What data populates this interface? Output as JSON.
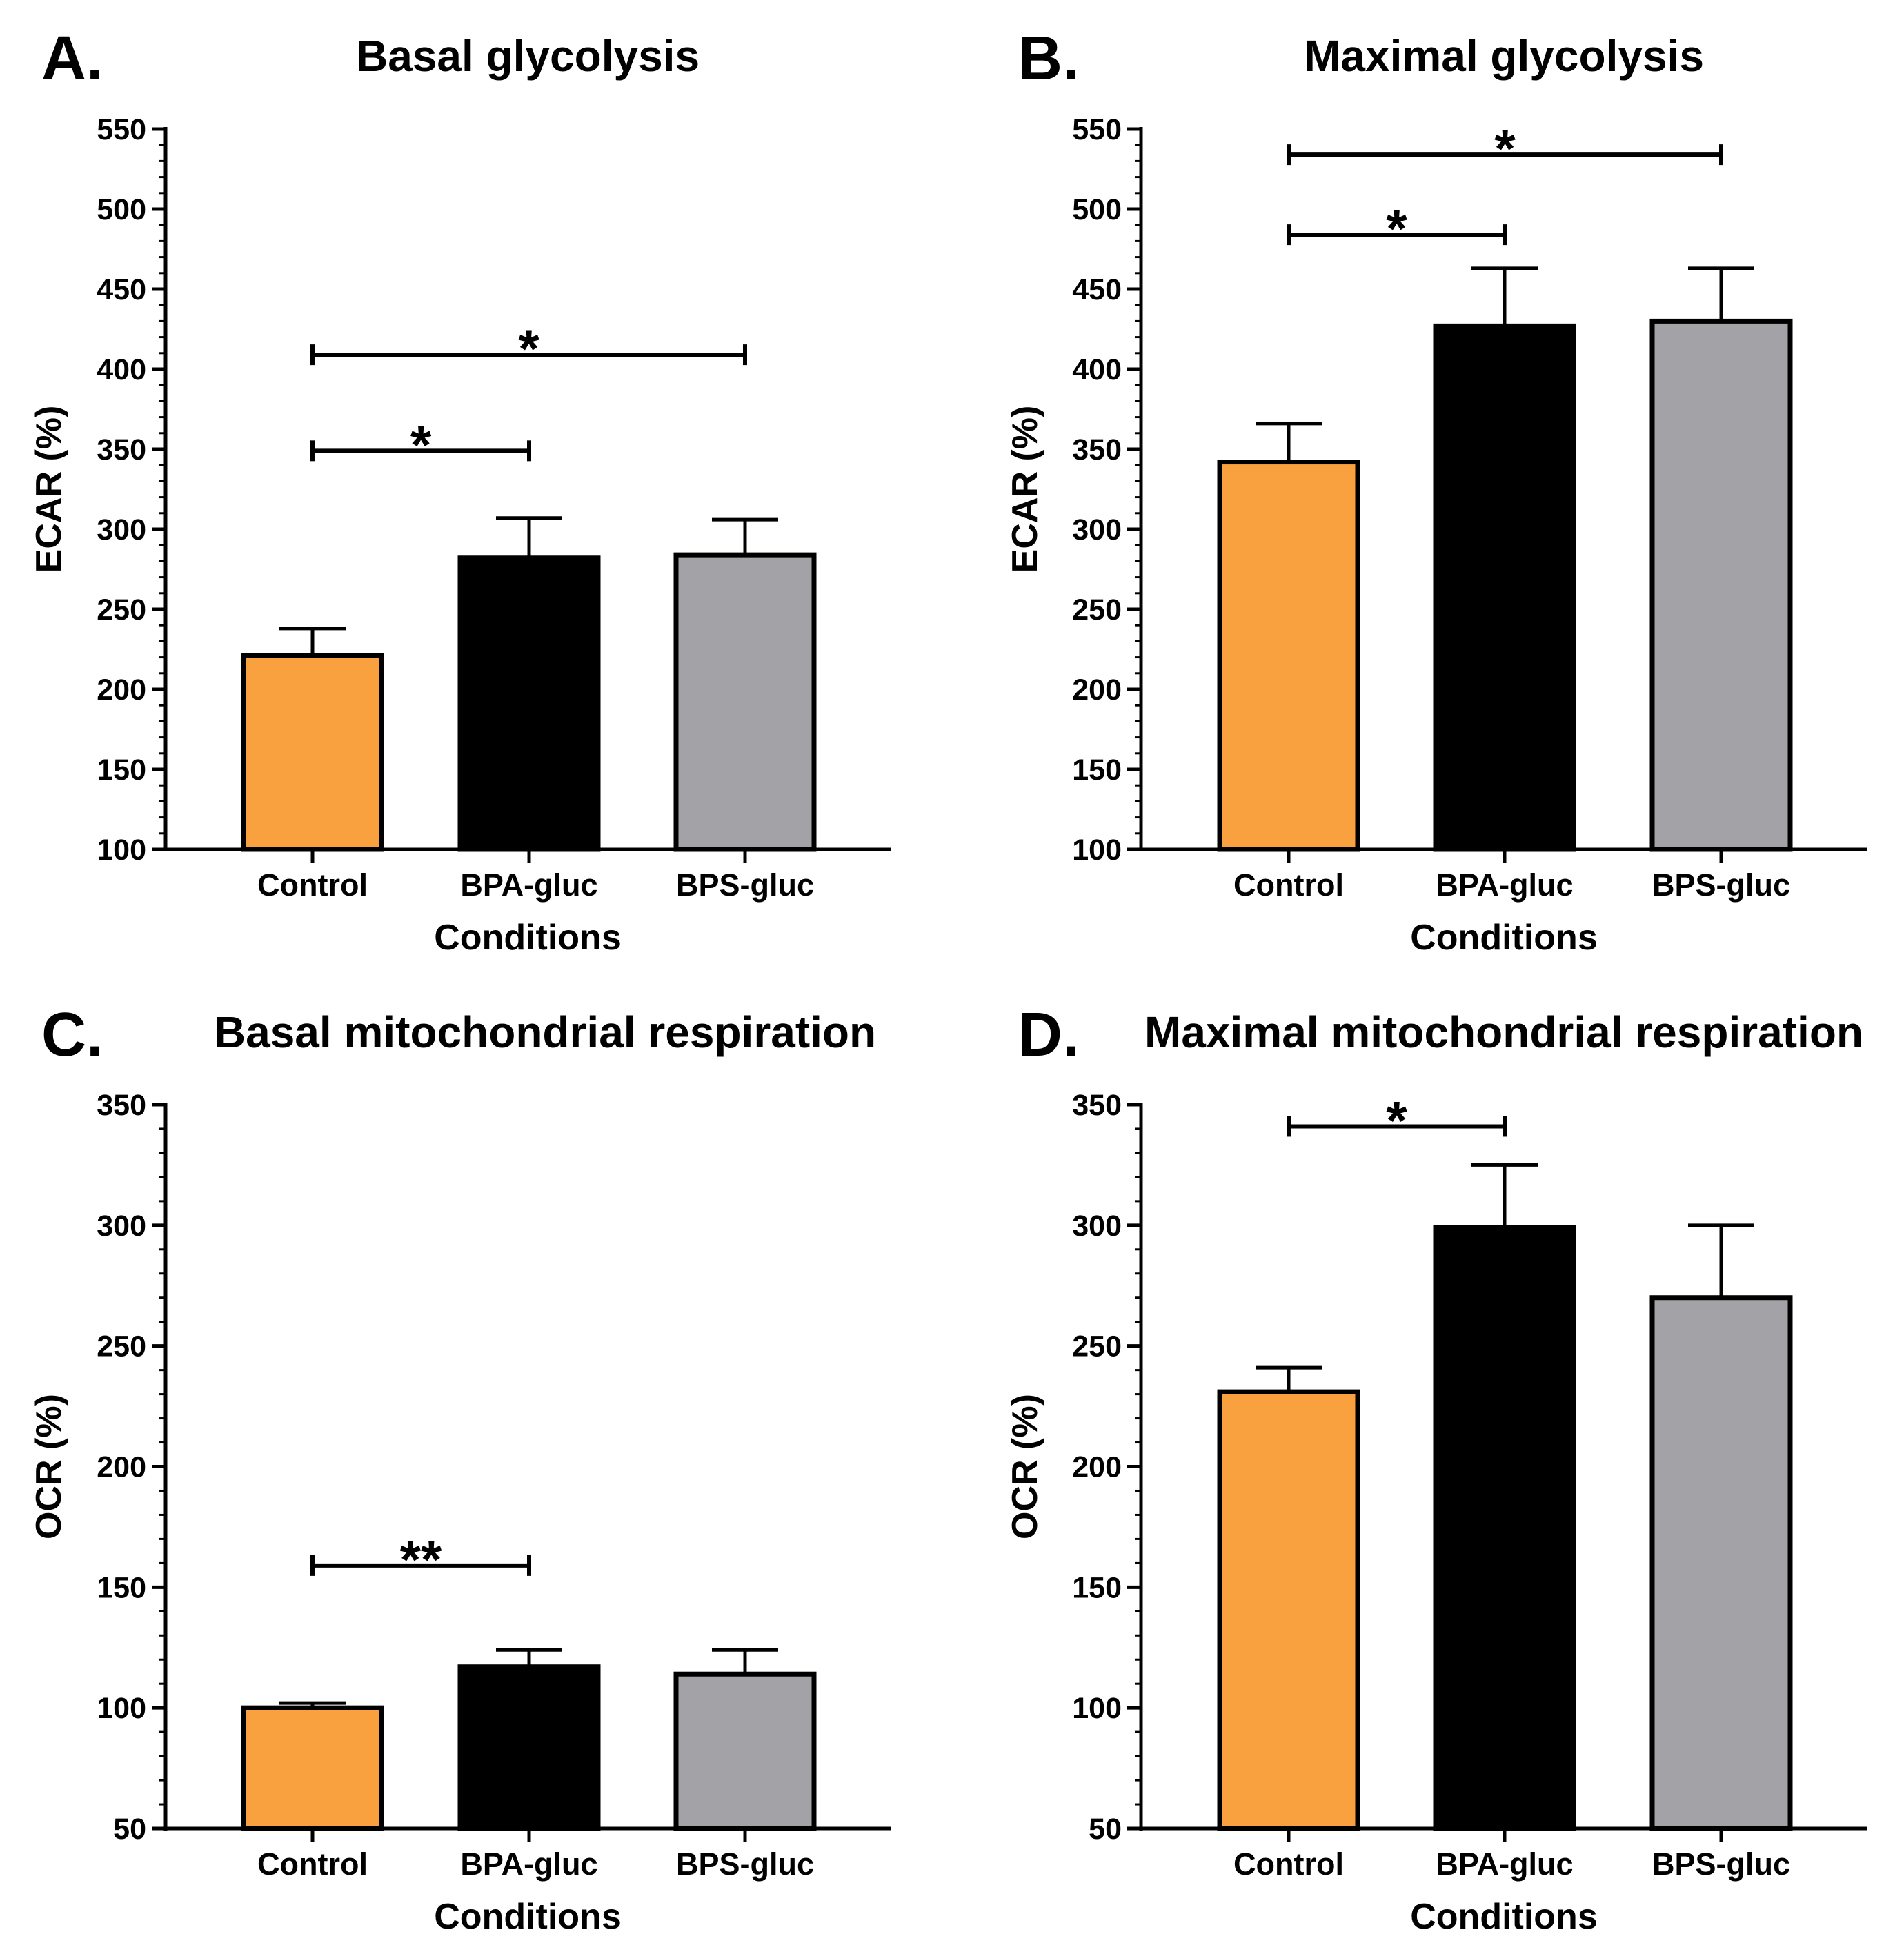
{
  "chart_data": [
    {
      "panel": "A.",
      "type": "bar",
      "title": "Basal glycolysis",
      "xlabel": "Conditions",
      "ylabel": "ECAR (%)",
      "ylim": [
        100,
        550
      ],
      "yticks": [
        100,
        150,
        200,
        250,
        300,
        350,
        400,
        450,
        500,
        550
      ],
      "categories": [
        "Control",
        "BPA-gluc",
        "BPS-gluc"
      ],
      "values": [
        221,
        282,
        284
      ],
      "errors": [
        17,
        25,
        22
      ],
      "colors": [
        "#F9A13F",
        "#000000",
        "#A3A2A7"
      ],
      "significance": [
        {
          "from": 0,
          "to": 1,
          "level": 349,
          "label": "*"
        },
        {
          "from": 0,
          "to": 2,
          "level": 409,
          "label": "*"
        }
      ]
    },
    {
      "panel": "B.",
      "type": "bar",
      "title": "Maximal glycolysis",
      "xlabel": "Conditions",
      "ylabel": "ECAR (%)",
      "ylim": [
        100,
        550
      ],
      "yticks": [
        100,
        150,
        200,
        250,
        300,
        350,
        400,
        450,
        500,
        550
      ],
      "categories": [
        "Control",
        "BPA-gluc",
        "BPS-gluc"
      ],
      "values": [
        342,
        427,
        430
      ],
      "errors": [
        24,
        36,
        33
      ],
      "colors": [
        "#F9A13F",
        "#000000",
        "#A3A2A7"
      ],
      "significance": [
        {
          "from": 0,
          "to": 1,
          "level": 484,
          "label": "*"
        },
        {
          "from": 0,
          "to": 2,
          "level": 534,
          "label": "*"
        }
      ]
    },
    {
      "panel": "C.",
      "type": "bar",
      "title": "Basal mitochondrial respiration",
      "xlabel": "Conditions",
      "ylabel": "OCR (%)",
      "ylim": [
        50,
        350
      ],
      "yticks": [
        50,
        100,
        150,
        200,
        250,
        300,
        350
      ],
      "categories": [
        "Control",
        "BPA-gluc",
        "BPS-gluc"
      ],
      "values": [
        100,
        117,
        114
      ],
      "errors": [
        2,
        7,
        10
      ],
      "colors": [
        "#F9A13F",
        "#000000",
        "#A3A2A7"
      ],
      "significance": [
        {
          "from": 0,
          "to": 1,
          "level": 159,
          "label": "**"
        }
      ]
    },
    {
      "panel": "D.",
      "type": "bar",
      "title": "Maximal mitochondrial respiration",
      "xlabel": "Conditions",
      "ylabel": "OCR (%)",
      "ylim": [
        50,
        350
      ],
      "yticks": [
        50,
        100,
        150,
        200,
        250,
        300,
        350
      ],
      "categories": [
        "Control",
        "BPA-gluc",
        "BPS-gluc"
      ],
      "values": [
        231,
        299,
        270
      ],
      "errors": [
        10,
        26,
        30
      ],
      "colors": [
        "#F9A13F",
        "#000000",
        "#A3A2A7"
      ],
      "significance": [
        {
          "from": 0,
          "to": 1,
          "level": 341,
          "label": "*"
        }
      ]
    }
  ]
}
